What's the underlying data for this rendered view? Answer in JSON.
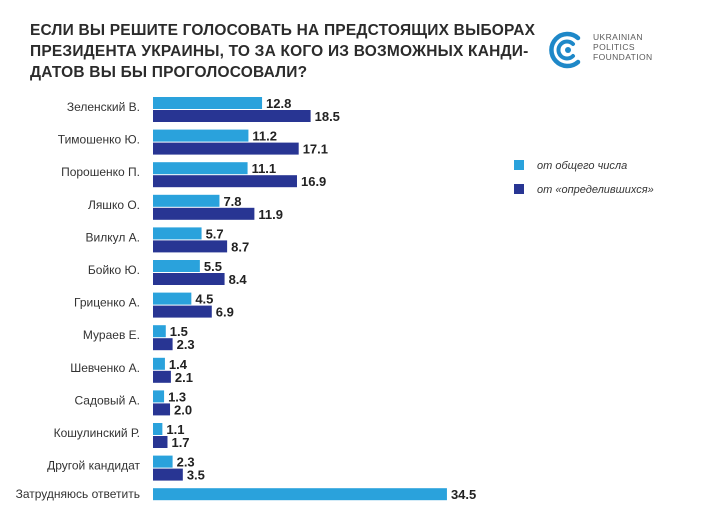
{
  "title_lines": [
    "ЕСЛИ ВЫ РЕШИТЕ ГОЛОСОВАТЬ НА ПРЕДСТОЯЩИХ ВЫБОРАХ",
    "ПРЕЗИДЕНТА УКРАИНЫ, ТО ЗА КОГО ИЗ ВОЗМОЖНЫХ КАНДИ-",
    "ДАТОВ ВЫ БЫ ПРОГОЛОСОВАЛИ?"
  ],
  "logo": {
    "line1": "UKRAINIAN",
    "line2": "POLITICS",
    "line3": "FOUNDATION"
  },
  "colors": {
    "light": "#2aa2dc",
    "dark": "#283593",
    "logo": "#1e88c8"
  },
  "chart_data": {
    "type": "bar",
    "orientation": "horizontal",
    "title": "ЕСЛИ ВЫ РЕШИТЕ ГОЛОСОВАТЬ НА ПРЕДСТОЯЩИХ ВЫБОРАХ ПРЕЗИДЕНТА УКРАИНЫ, ТО ЗА КОГО ИЗ ВОЗМОЖНЫХ КАНДИДАТОВ ВЫ БЫ ПРОГОЛОСОВАЛИ?",
    "xlim": [
      0,
      34.5
    ],
    "categories": [
      "Зеленский В.",
      "Тимошенко Ю.",
      "Порошенко П.",
      "Ляшко О.",
      "Вилкул А.",
      "Бойко Ю.",
      "Гриценко А.",
      "Мураев Е.",
      "Шевченко А.",
      "Садовый А.",
      "Кошулинский Р.",
      "Другой кандидат",
      "Затрудняюсь ответить"
    ],
    "series": [
      {
        "name": "от общего числа",
        "color": "#2aa2dc",
        "values": [
          12.8,
          11.2,
          11.1,
          7.8,
          5.7,
          5.5,
          4.5,
          1.5,
          1.4,
          1.3,
          1.1,
          2.3,
          34.5
        ],
        "labels": [
          "12.8",
          "11.2",
          "11.1",
          "7.8",
          "5.7",
          "5.5",
          "4.5",
          "1.5",
          "1.4",
          "1.3",
          "1.1",
          "2.3",
          "34.5"
        ]
      },
      {
        "name": "от «определившихся»",
        "color": "#283593",
        "values": [
          18.5,
          17.1,
          16.9,
          11.9,
          8.7,
          8.4,
          6.9,
          2.3,
          2.1,
          2.0,
          1.7,
          3.5,
          null
        ],
        "labels": [
          "18.5",
          "17.1",
          "16.9",
          "11.9",
          "8.7",
          "8.4",
          "6.9",
          "2.3",
          "2.1",
          "2.0",
          "1.7",
          "3.5",
          null
        ]
      }
    ],
    "legend": {
      "position": "right",
      "entries": [
        "от общего числа",
        "от «определившихся»"
      ]
    }
  }
}
